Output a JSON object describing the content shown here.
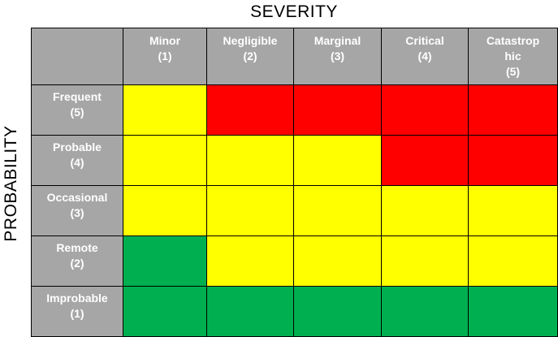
{
  "x_axis_title": "SEVERITY",
  "y_axis_title": "PROBABILITY",
  "columns": [
    {
      "label": "Minor",
      "level": "(1)"
    },
    {
      "label": "Negligible",
      "level": "(2)"
    },
    {
      "label": "Marginal",
      "level": "(3)"
    },
    {
      "label": "Critical",
      "level": "(4)"
    },
    {
      "label": "Catastrop hic",
      "label_line1": "Catastrop",
      "label_line2": "hic",
      "level": "(5)"
    }
  ],
  "rows": [
    {
      "label": "Frequent",
      "level": "(5)",
      "cells": [
        "yellow",
        "red",
        "red",
        "red",
        "red"
      ]
    },
    {
      "label": "Probable",
      "level": "(4)",
      "cells": [
        "yellow",
        "yellow",
        "yellow",
        "red",
        "red"
      ]
    },
    {
      "label": "Occasional",
      "level": "(3)",
      "cells": [
        "yellow",
        "yellow",
        "yellow",
        "yellow",
        "yellow"
      ]
    },
    {
      "label": "Remote",
      "level": "(2)",
      "cells": [
        "green",
        "yellow",
        "yellow",
        "yellow",
        "yellow"
      ]
    },
    {
      "label": "Improbable",
      "level": "(1)",
      "cells": [
        "green",
        "green",
        "green",
        "green",
        "green"
      ]
    }
  ],
  "colors": {
    "header_bg": "#a6a6a6",
    "header_text": "#ffffff",
    "red": "#ff0000",
    "yellow": "#ffff00",
    "green": "#00b050"
  }
}
